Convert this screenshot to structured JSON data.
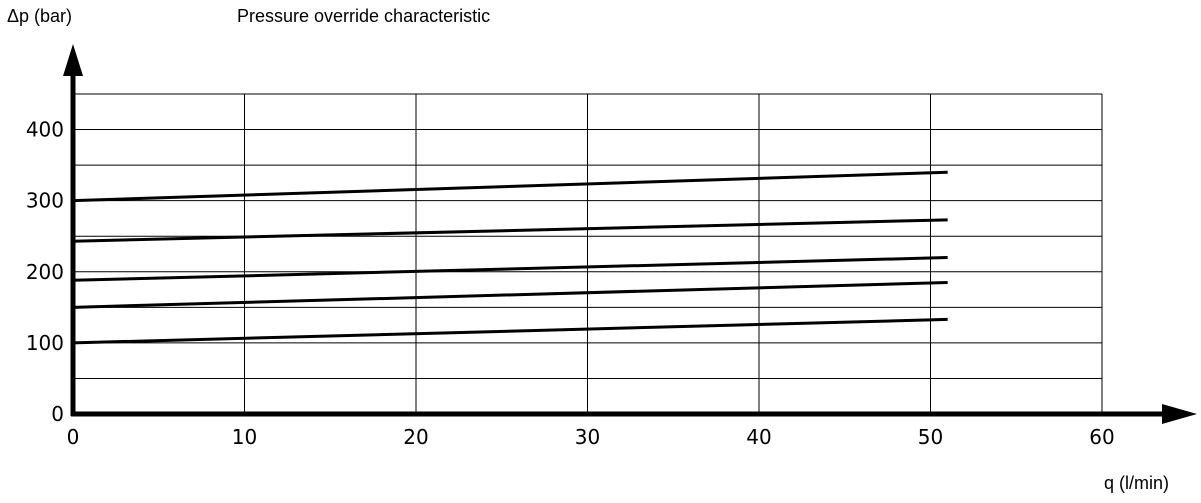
{
  "chart_data": {
    "type": "line",
    "title": "Pressure override characteristic",
    "xlabel": "q (l/min)",
    "ylabel": "Δp (bar)",
    "xlim": [
      0,
      60
    ],
    "ylim": [
      0,
      450
    ],
    "x_ticks": [
      "0",
      "10",
      "20",
      "30",
      "40",
      "50",
      "60"
    ],
    "y_ticks": [
      "0",
      "100",
      "200",
      "300",
      "400"
    ],
    "grid": true,
    "series": [
      {
        "x": [
          0,
          51
        ],
        "y": [
          300,
          340
        ]
      },
      {
        "x": [
          0,
          51
        ],
        "y": [
          243,
          273
        ]
      },
      {
        "x": [
          0,
          51
        ],
        "y": [
          188,
          220
        ]
      },
      {
        "x": [
          0,
          51
        ],
        "y": [
          150,
          185
        ]
      },
      {
        "x": [
          0,
          51
        ],
        "y": [
          100,
          133
        ]
      }
    ]
  }
}
